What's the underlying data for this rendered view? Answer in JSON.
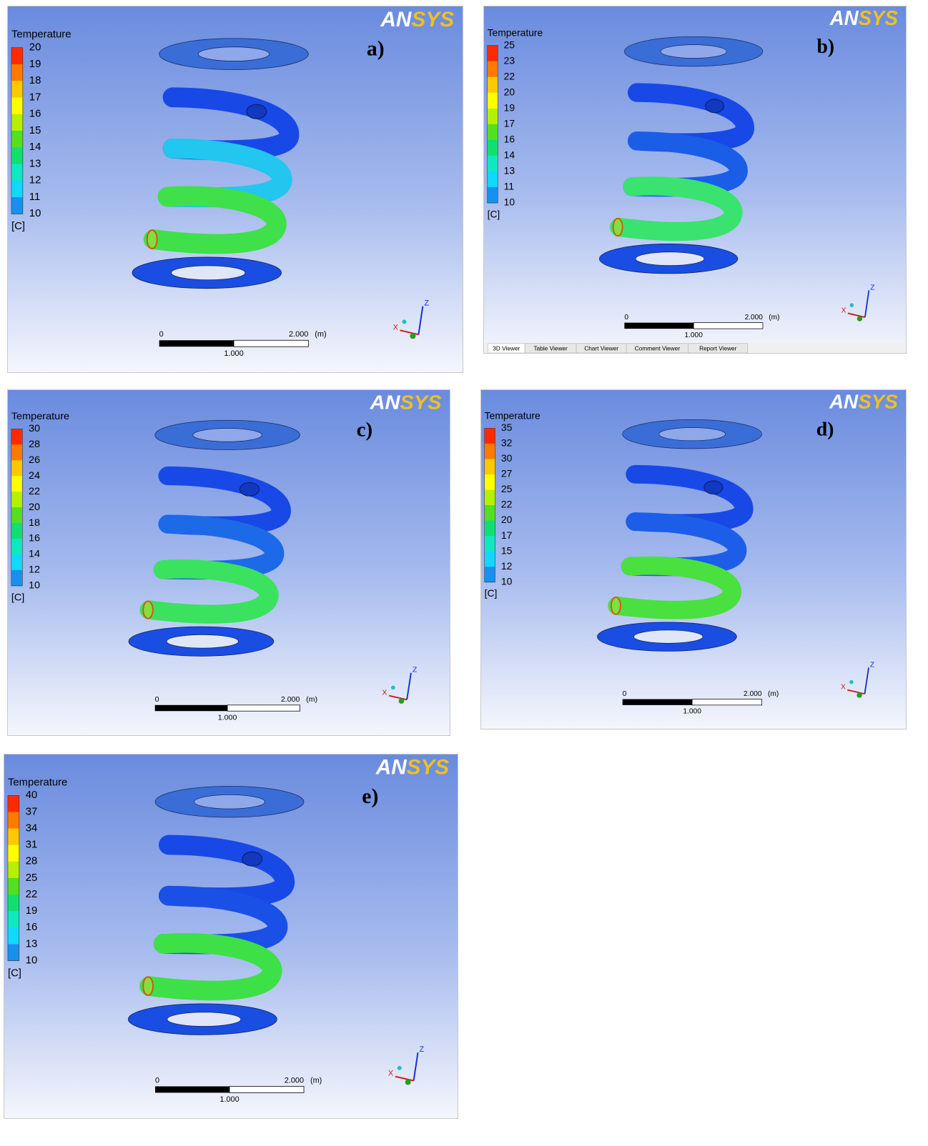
{
  "panels": [
    {
      "logo": {
        "left": "AN",
        "right": "SYS"
      },
      "label": "a)",
      "legend_title": "Temperature",
      "legend_ticks": [
        20,
        19,
        18,
        17,
        16,
        15,
        14,
        13,
        12,
        11,
        10
      ],
      "unit": "[C]",
      "scale": {
        "start": "0",
        "end": "2.000",
        "unit": "(m)",
        "mid": "1.000"
      },
      "axes": {
        "x": "X",
        "z": "Z"
      }
    },
    {
      "logo": {
        "left": "AN",
        "right": "SYS"
      },
      "label": "b)",
      "legend_title": "Temperature",
      "legend_ticks": [
        25,
        23,
        22,
        20,
        19,
        17,
        16,
        14,
        13,
        11,
        10
      ],
      "unit": "[C]",
      "scale": {
        "start": "0",
        "end": "2.000",
        "unit": "(m)",
        "mid": "1.000"
      },
      "axes": {
        "x": "X",
        "z": "Z"
      },
      "tabs": [
        "3D Viewer",
        "Table Viewer",
        "Chart Viewer",
        "Comment Viewer",
        "Report Viewer"
      ]
    },
    {
      "logo": {
        "left": "AN",
        "right": "SYS"
      },
      "label": "c)",
      "legend_title": "Temperature",
      "legend_ticks": [
        30,
        28,
        26,
        24,
        22,
        20,
        18,
        16,
        14,
        12,
        10
      ],
      "unit": "[C]",
      "scale": {
        "start": "0",
        "end": "2.000",
        "unit": "(m)",
        "mid": "1.000"
      },
      "axes": {
        "x": "X",
        "z": "Z"
      }
    },
    {
      "logo": {
        "left": "AN",
        "right": "SYS"
      },
      "label": "d)",
      "legend_title": "Temperature",
      "legend_ticks": [
        35,
        32,
        30,
        27,
        25,
        22,
        20,
        17,
        15,
        12,
        10
      ],
      "unit": "[C]",
      "scale": {
        "start": "0",
        "end": "2.000",
        "unit": "(m)",
        "mid": "1.000"
      },
      "axes": {
        "x": "X",
        "z": "Z"
      }
    },
    {
      "logo": {
        "left": "AN",
        "right": "SYS"
      },
      "label": "e)",
      "legend_title": "Temperature",
      "legend_ticks": [
        40,
        37,
        34,
        31,
        28,
        25,
        22,
        19,
        16,
        13,
        10
      ],
      "unit": "[C]",
      "scale": {
        "start": "0",
        "end": "2.000",
        "unit": "(m)",
        "mid": "1.000"
      },
      "axes": {
        "x": "X",
        "z": "Z"
      }
    }
  ]
}
